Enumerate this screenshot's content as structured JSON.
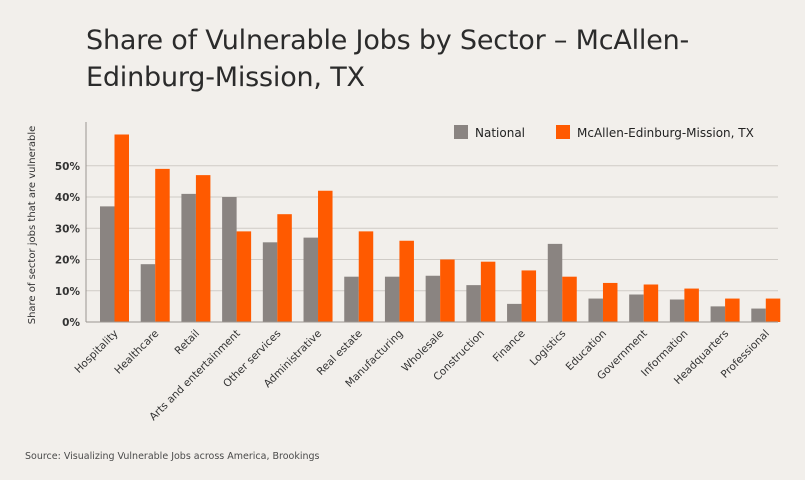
{
  "title": "Share of Vulnerable Jobs by Sector – McAllen-Edinburg-Mission, TX",
  "source": "Source: Visualizing Vulnerable Jobs across America, Brookings",
  "colors": {
    "national": "#8a8481",
    "local": "#ff5a00",
    "grid": "#cfcbc6",
    "axis": "#9a9590"
  },
  "chart_data": {
    "type": "bar",
    "ylabel": "Share of sector jobs that are vulnerable",
    "ylim": [
      0,
      0.64
    ],
    "yticks": [
      0,
      0.1,
      0.2,
      0.3,
      0.4,
      0.5
    ],
    "ytick_labels": [
      "0%",
      "10%",
      "20%",
      "30%",
      "40%",
      "50%"
    ],
    "grid": true,
    "legend_position": "top-right",
    "categories": [
      "Hospitality",
      "Healthcare",
      "Retail",
      "Arts and entertainment",
      "Other services",
      "Administrative",
      "Real estate",
      "Manufacturing",
      "Wholesale",
      "Construction",
      "Finance",
      "Logistics",
      "Education",
      "Government",
      "Information",
      "Headquarters",
      "Professional"
    ],
    "series": [
      {
        "name": "National",
        "values": [
          0.37,
          0.185,
          0.41,
          0.4,
          0.255,
          0.27,
          0.145,
          0.145,
          0.148,
          0.118,
          0.058,
          0.25,
          0.075,
          0.088,
          0.072,
          0.05,
          0.043
        ]
      },
      {
        "name": "McAllen-Edinburg-Mission, TX",
        "values": [
          0.6,
          0.49,
          0.47,
          0.29,
          0.345,
          0.42,
          0.29,
          0.26,
          0.2,
          0.193,
          0.165,
          0.145,
          0.125,
          0.12,
          0.107,
          0.075,
          0.075
        ]
      }
    ]
  }
}
